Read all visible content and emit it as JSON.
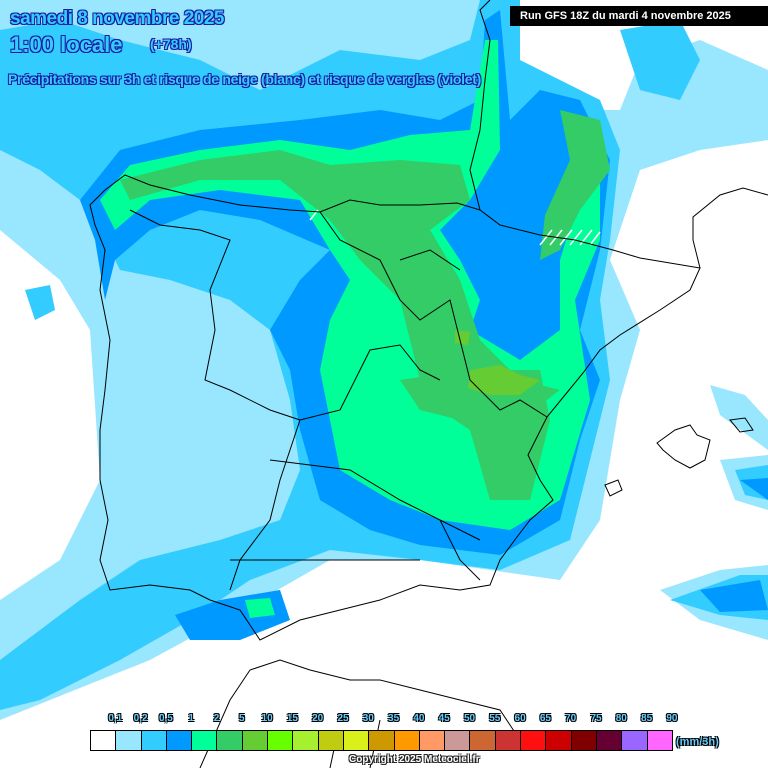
{
  "header": {
    "date": "samedi 8 novembre 2025",
    "hour": "1:00 locale",
    "lead": "(+78h)",
    "description": "Précipitations sur 3h et risque de neige (blanc) et risque de verglas (violet)",
    "run": "Run GFS 18Z du mardi 4 novembre 2025"
  },
  "legend": {
    "unit": "(mm/3h)",
    "labels": [
      "0,1",
      "0,2",
      "0,5",
      "1",
      "2",
      "5",
      "10",
      "15",
      "20",
      "25",
      "30",
      "35",
      "40",
      "45",
      "50",
      "55",
      "60",
      "65",
      "70",
      "75",
      "80",
      "85",
      "90"
    ],
    "colors": [
      "#ffffff",
      "#99e6ff",
      "#33ccff",
      "#0099ff",
      "#00ff99",
      "#33cc66",
      "#66cc33",
      "#66ff00",
      "#a6f02f",
      "#bfcc10",
      "#d9f01a",
      "#cc9900",
      "#ff9900",
      "#ff9966",
      "#cc9999",
      "#cc6633",
      "#cc3333",
      "#ff1010",
      "#cc0000",
      "#800000",
      "#660033",
      "#9966ff",
      "#ff66ff"
    ]
  },
  "copyright": "Copyright 2025 Meteociel.fr"
}
